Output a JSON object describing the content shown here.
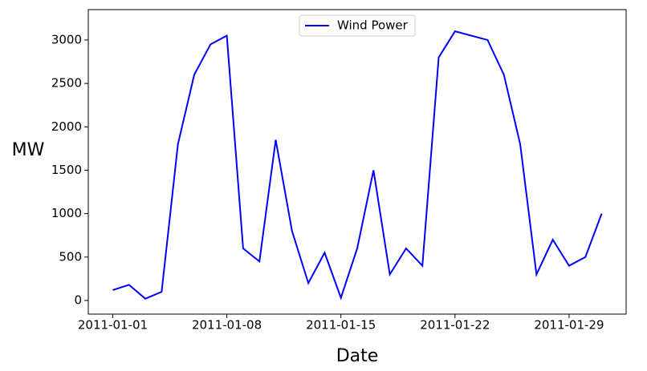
{
  "chart_data": {
    "type": "line",
    "x": [
      "2011-01-01",
      "2011-01-02",
      "2011-01-03",
      "2011-01-04",
      "2011-01-05",
      "2011-01-06",
      "2011-01-07",
      "2011-01-08",
      "2011-01-09",
      "2011-01-10",
      "2011-01-11",
      "2011-01-12",
      "2011-01-13",
      "2011-01-14",
      "2011-01-15",
      "2011-01-16",
      "2011-01-17",
      "2011-01-18",
      "2011-01-19",
      "2011-01-20",
      "2011-01-21",
      "2011-01-22",
      "2011-01-23",
      "2011-01-24",
      "2011-01-25",
      "2011-01-26",
      "2011-01-27",
      "2011-01-28",
      "2011-01-29",
      "2011-01-30",
      "2011-01-31"
    ],
    "series": [
      {
        "name": "Wind Power",
        "color": "#0000ff",
        "values": [
          120,
          180,
          20,
          100,
          1800,
          2600,
          2950,
          3050,
          600,
          450,
          1850,
          800,
          200,
          550,
          30,
          600,
          1500,
          300,
          600,
          400,
          2800,
          3100,
          3050,
          3000,
          2600,
          1800,
          300,
          700,
          400,
          500,
          1000
        ]
      }
    ],
    "xlabel": "Date",
    "ylabel": "MW",
    "xticks": [
      "2011-01-01",
      "2011-01-08",
      "2011-01-15",
      "2011-01-22",
      "2011-01-29"
    ],
    "ylim": [
      -157,
      3350
    ],
    "yticks": [
      0,
      500,
      1000,
      1500,
      2000,
      2500,
      3000
    ],
    "legend": "upper center"
  }
}
